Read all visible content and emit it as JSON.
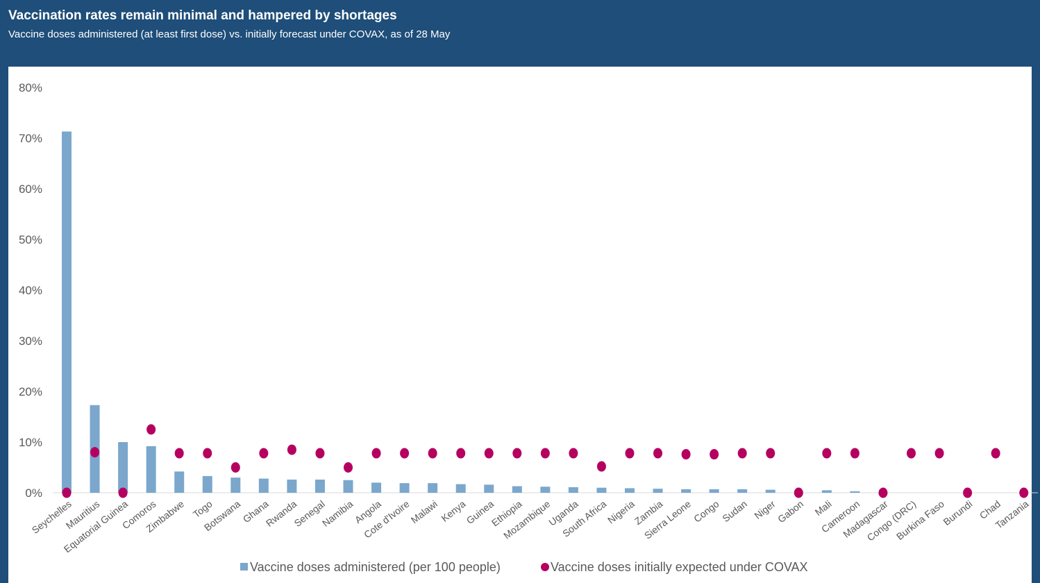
{
  "header": {
    "title": "Vaccination rates remain minimal and hampered by shortages",
    "subtitle": "Vaccine doses administered (at least first dose) vs. initially forecast under COVAX, as of 28 May"
  },
  "colors": {
    "header_bg": "#1e4e79",
    "bar": "#7ba7cc",
    "dot": "#b5005f",
    "tick_text": "#595959"
  },
  "chart_data": {
    "type": "bar",
    "title": "Vaccination rates remain minimal and hampered by shortages",
    "subtitle": "Vaccine doses administered (at least first dose) vs. initially forecast under COVAX, as of 28 May",
    "ylim": [
      0,
      80
    ],
    "y_ticks": [
      "0%",
      "10%",
      "20%",
      "30%",
      "40%",
      "50%",
      "60%",
      "70%",
      "80%"
    ],
    "grid": false,
    "legend_position": "bottom",
    "categories": [
      "Seychelles",
      "Mauritius",
      "Equatorial Guinea",
      "Comoros",
      "Zimbabwe",
      "Togo",
      "Botswana",
      "Ghana",
      "Rwanda",
      "Senegal",
      "Namibia",
      "Angola",
      "Cote d'Ivoire",
      "Malawi",
      "Kenya",
      "Guinea",
      "Ethiopia",
      "Mozambique",
      "Uganda",
      "South Africa",
      "Nigeria",
      "Zambia",
      "Sierra Leone",
      "Congo",
      "Sudan",
      "Niger",
      "Gabon",
      "Mali",
      "Cameroon",
      "Madagascar",
      "Congo (DRC)",
      "Burkina Faso",
      "Burundi",
      "Chad",
      "Tanzania"
    ],
    "series": [
      {
        "name": "Vaccine doses administered (per 100 people)",
        "type": "bar",
        "values": [
          71.3,
          17.3,
          10.0,
          9.2,
          4.2,
          3.3,
          3.0,
          2.8,
          2.6,
          2.6,
          2.5,
          2.0,
          1.9,
          1.9,
          1.7,
          1.6,
          1.3,
          1.2,
          1.1,
          1.0,
          0.9,
          0.8,
          0.7,
          0.7,
          0.7,
          0.6,
          0.0,
          0.5,
          0.3,
          0.0,
          0.0,
          0.0,
          0.0,
          0.0,
          0.0
        ]
      },
      {
        "name": "Vaccine doses initially expected under COVAX",
        "type": "scatter",
        "values": [
          0.0,
          8.0,
          0.0,
          12.5,
          7.8,
          7.8,
          5.0,
          7.8,
          8.5,
          7.8,
          5.0,
          7.8,
          7.8,
          7.8,
          7.8,
          7.8,
          7.8,
          7.8,
          7.8,
          5.2,
          7.8,
          7.8,
          7.6,
          7.6,
          7.8,
          7.8,
          0.0,
          7.8,
          7.8,
          0.0,
          7.8,
          7.8,
          0.0,
          7.8,
          0.0
        ]
      }
    ]
  }
}
